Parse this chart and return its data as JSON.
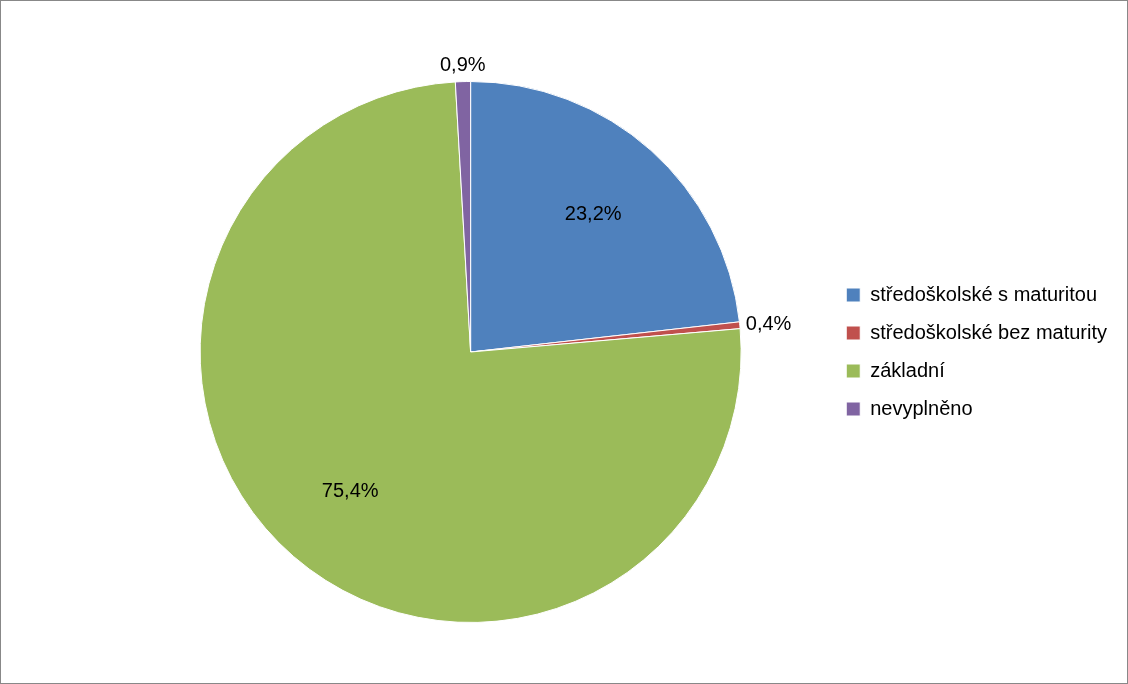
{
  "chart_data": {
    "type": "pie",
    "categories": [
      "středoškolské s maturitou",
      "středoškolské bez maturity",
      "základní",
      "nevyplněno"
    ],
    "values": [
      23.2,
      0.4,
      75.4,
      0.9
    ],
    "colors": [
      "#4f81bd",
      "#c0504d",
      "#9bbb59",
      "#8064a2"
    ],
    "value_labels": [
      "23,2%",
      "0,4%",
      "75,4%",
      "0,9%"
    ],
    "legend": "right"
  }
}
